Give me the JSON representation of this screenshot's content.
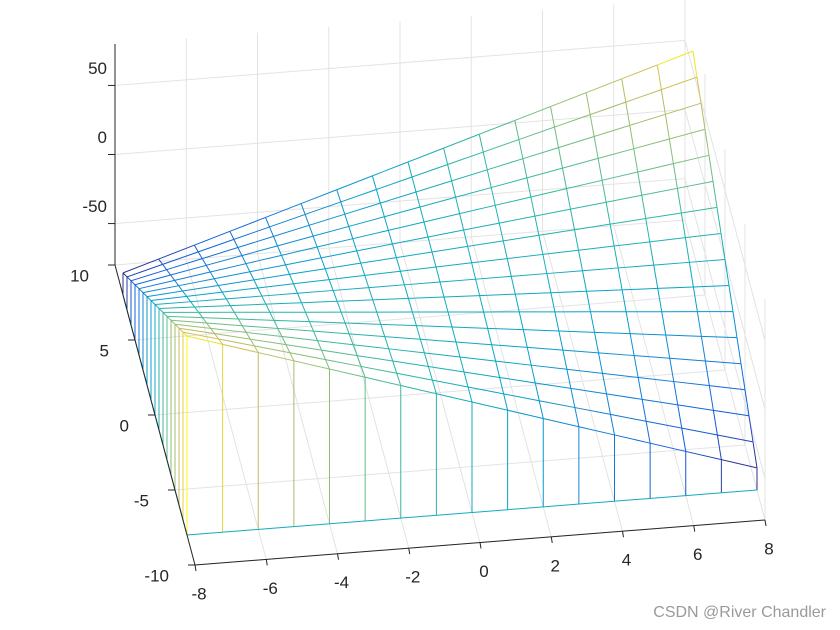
{
  "chart_data": {
    "type": "meshz",
    "x": [
      -8,
      -7,
      -6,
      -5,
      -4,
      -3,
      -2,
      -1,
      0,
      1,
      2,
      3,
      4,
      5,
      6,
      7,
      8
    ],
    "y": [
      -8,
      -7,
      -6,
      -5,
      -4,
      -3,
      -2,
      -1,
      0,
      1,
      2,
      3,
      4,
      5,
      6,
      7,
      8
    ],
    "z": [
      [
        64,
        56,
        48,
        40,
        32,
        24,
        16,
        8,
        0,
        -8,
        -16,
        -24,
        -32,
        -40,
        -48,
        -56,
        -64
      ],
      [
        56,
        49,
        42,
        35,
        28,
        21,
        14,
        7,
        0,
        -7,
        -14,
        -21,
        -28,
        -35,
        -42,
        -49,
        -56
      ],
      [
        48,
        42,
        36,
        30,
        24,
        18,
        12,
        6,
        0,
        -6,
        -12,
        -18,
        -24,
        -30,
        -36,
        -42,
        -48
      ],
      [
        40,
        35,
        30,
        25,
        20,
        15,
        10,
        5,
        0,
        -5,
        -10,
        -15,
        -20,
        -25,
        -30,
        -35,
        -40
      ],
      [
        32,
        28,
        24,
        20,
        16,
        12,
        8,
        4,
        0,
        -4,
        -8,
        -12,
        -16,
        -20,
        -24,
        -28,
        -32
      ],
      [
        24,
        21,
        18,
        15,
        12,
        9,
        6,
        3,
        0,
        -3,
        -6,
        -9,
        -12,
        -15,
        -18,
        -21,
        -24
      ],
      [
        16,
        14,
        12,
        10,
        8,
        6,
        4,
        2,
        0,
        -2,
        -4,
        -6,
        -8,
        -10,
        -12,
        -14,
        -16
      ],
      [
        8,
        7,
        6,
        5,
        4,
        3,
        2,
        1,
        0,
        -1,
        -2,
        -3,
        -4,
        -5,
        -6,
        -7,
        -8
      ],
      [
        0,
        0,
        0,
        0,
        0,
        0,
        0,
        0,
        0,
        0,
        0,
        0,
        0,
        0,
        0,
        0,
        0
      ],
      [
        -8,
        -7,
        -6,
        -5,
        -4,
        -3,
        -2,
        -1,
        0,
        1,
        2,
        3,
        4,
        5,
        6,
        7,
        8
      ],
      [
        -16,
        -14,
        -12,
        -10,
        -8,
        -6,
        -4,
        -2,
        0,
        2,
        4,
        6,
        8,
        10,
        12,
        14,
        16
      ],
      [
        -24,
        -21,
        -18,
        -15,
        -12,
        -9,
        -6,
        -3,
        0,
        3,
        6,
        9,
        12,
        15,
        18,
        21,
        24
      ],
      [
        -32,
        -28,
        -24,
        -20,
        -16,
        -12,
        -8,
        -4,
        0,
        4,
        8,
        12,
        16,
        20,
        24,
        28,
        32
      ],
      [
        -40,
        -35,
        -30,
        -25,
        -20,
        -15,
        -10,
        -5,
        0,
        5,
        10,
        15,
        20,
        25,
        30,
        35,
        40
      ],
      [
        -48,
        -42,
        -36,
        -30,
        -24,
        -18,
        -12,
        -6,
        0,
        6,
        12,
        18,
        24,
        30,
        36,
        42,
        48
      ],
      [
        -56,
        -49,
        -42,
        -35,
        -28,
        -21,
        -14,
        -7,
        0,
        7,
        14,
        21,
        28,
        35,
        42,
        49,
        56
      ],
      [
        -64,
        -56,
        -48,
        -40,
        -32,
        -24,
        -16,
        -8,
        0,
        8,
        16,
        24,
        32,
        40,
        48,
        56,
        64
      ]
    ],
    "xlim": [
      -8,
      8
    ],
    "ylim": [
      -10,
      10
    ],
    "zlim": [
      -80,
      80
    ],
    "xticks": [
      -8,
      -6,
      -4,
      -2,
      0,
      2,
      4,
      6,
      8
    ],
    "yticks": [
      -10,
      -5,
      0,
      5,
      10
    ],
    "zticks": [
      -50,
      0,
      50
    ],
    "colormap": "parula",
    "grid": true
  },
  "watermark": "CSDN @River Chandler"
}
